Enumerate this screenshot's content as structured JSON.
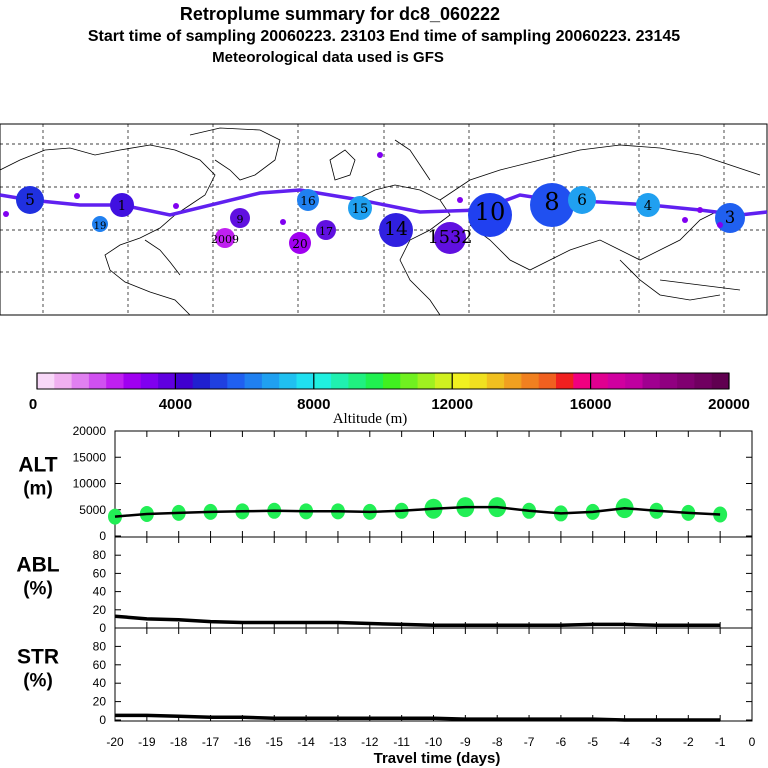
{
  "header": {
    "title": "Retroplume summary for dc8_060222",
    "line2": "Start time of sampling 20060223. 23103     End time of sampling 20060223. 23145",
    "line3": "Meteorological data used is GFS"
  },
  "map": {
    "plume_labels": [
      "5",
      "1",
      "16",
      "15",
      "14",
      "1532",
      "10",
      "8",
      "6",
      "4",
      "3",
      "9",
      "17",
      "19",
      "20",
      "2009"
    ]
  },
  "colorbar": {
    "ticks": [
      "0",
      "4000",
      "8000",
      "12000",
      "16000",
      "20000"
    ],
    "label": "Altitude (m)",
    "colors": [
      "#f8d8f8",
      "#f0b0f0",
      "#e080f0",
      "#d050f0",
      "#c020f0",
      "#a000f0",
      "#8000f0",
      "#6000e0",
      "#4000d0",
      "#2020d0",
      "#2040e0",
      "#2060f0",
      "#2080f0",
      "#20a0f0",
      "#20c0f0",
      "#20e0f0",
      "#20f0e0",
      "#20f0b0",
      "#20f080",
      "#20f050",
      "#40f020",
      "#70f020",
      "#a0f020",
      "#d0f020",
      "#f0f020",
      "#f0e020",
      "#f0c020",
      "#f0a020",
      "#f08020",
      "#f06020",
      "#f02020",
      "#f00080",
      "#e00090",
      "#d000a0",
      "#c000a0",
      "#a00090",
      "#900080",
      "#800070",
      "#700060",
      "#600050"
    ]
  },
  "axes": {
    "x_ticks": [
      "-20",
      "-19",
      "-18",
      "-17",
      "-16",
      "-15",
      "-14",
      "-13",
      "-12",
      "-11",
      "-10",
      "-9",
      "-8",
      "-7",
      "-6",
      "-5",
      "-4",
      "-3",
      "-2",
      "-1",
      "0"
    ],
    "x_label": "Travel time (days)"
  },
  "chart_data": [
    {
      "type": "line",
      "panel": "ALT",
      "ylabel_top": "ALT",
      "ylabel_bottom": "(m)",
      "ylim": [
        0,
        20000
      ],
      "yticks": [
        "20000",
        "15000",
        "10000",
        "5000",
        "0"
      ],
      "x": [
        -20,
        -19,
        -18,
        -17,
        -16,
        -15,
        -14,
        -13,
        -12,
        -11,
        -10,
        -9,
        -8,
        -7,
        -6,
        -5,
        -4,
        -3,
        -2,
        -1
      ],
      "values": [
        3700,
        4200,
        4400,
        4600,
        4700,
        4800,
        4700,
        4700,
        4600,
        4800,
        5200,
        5500,
        5500,
        4800,
        4300,
        4600,
        5300,
        4800,
        4400,
        4100
      ],
      "marker_color": "#22ee55",
      "line_color": "#000000"
    },
    {
      "type": "line",
      "panel": "ABL",
      "ylabel_top": "ABL",
      "ylabel_bottom": "(%)",
      "ylim": [
        0,
        100
      ],
      "yticks": [
        "80",
        "60",
        "40",
        "20",
        "0"
      ],
      "x": [
        -20,
        -19,
        -18,
        -17,
        -16,
        -15,
        -14,
        -13,
        -12,
        -11,
        -10,
        -9,
        -8,
        -7,
        -6,
        -5,
        -4,
        -3,
        -2,
        -1
      ],
      "values": [
        13,
        10,
        9,
        7,
        6,
        6,
        6,
        6,
        5,
        4,
        3,
        3,
        3,
        3,
        3,
        4,
        4,
        3,
        3,
        3
      ],
      "line_color": "#000000"
    },
    {
      "type": "line",
      "panel": "STR",
      "ylabel_top": "STR",
      "ylabel_bottom": "(%)",
      "ylim": [
        0,
        100
      ],
      "yticks": [
        "80",
        "60",
        "40",
        "20",
        "0"
      ],
      "x": [
        -20,
        -19,
        -18,
        -17,
        -16,
        -15,
        -14,
        -13,
        -12,
        -11,
        -10,
        -9,
        -8,
        -7,
        -6,
        -5,
        -4,
        -3,
        -2,
        -1
      ],
      "values": [
        5,
        5,
        4,
        3,
        3,
        2,
        2,
        2,
        2,
        2,
        2,
        1,
        1,
        1,
        1,
        1,
        0,
        0,
        0,
        0
      ],
      "line_color": "#000000"
    }
  ]
}
